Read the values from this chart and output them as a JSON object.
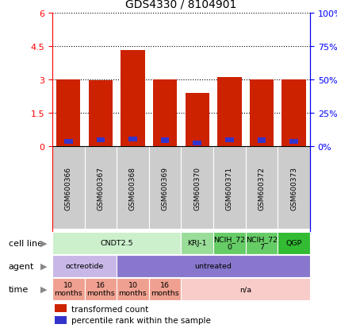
{
  "title": "GDS4330 / 8104901",
  "samples": [
    "GSM600366",
    "GSM600367",
    "GSM600368",
    "GSM600369",
    "GSM600370",
    "GSM600371",
    "GSM600372",
    "GSM600373"
  ],
  "bar_heights": [
    3.0,
    2.95,
    4.3,
    3.0,
    2.4,
    3.1,
    3.0,
    3.0
  ],
  "blue_positions": [
    0.12,
    0.18,
    0.2,
    0.16,
    0.05,
    0.18,
    0.16,
    0.12
  ],
  "blue_heights": [
    0.22,
    0.22,
    0.22,
    0.22,
    0.22,
    0.22,
    0.22,
    0.22
  ],
  "ylim_main": [
    0,
    6
  ],
  "yticks": [
    0,
    1.5,
    3.0,
    4.5,
    6.0
  ],
  "ytick_labels": [
    "0",
    "1.5",
    "3",
    "4.5",
    "6"
  ],
  "right_ytick_labels": [
    "0%",
    "25%",
    "50%",
    "75%",
    "100%"
  ],
  "bar_color": "#cc2200",
  "blue_color": "#3333cc",
  "sample_box_color": "#cccccc",
  "cell_line_row": {
    "groups": [
      {
        "label": "CNDT2.5",
        "start": 0,
        "end": 4,
        "color": "#ccf0cc"
      },
      {
        "label": "KRJ-1",
        "start": 4,
        "end": 5,
        "color": "#99dd99"
      },
      {
        "label": "NCIH_72\n0",
        "start": 5,
        "end": 6,
        "color": "#66cc66"
      },
      {
        "label": "NCIH_72\n7",
        "start": 6,
        "end": 7,
        "color": "#66cc66"
      },
      {
        "label": "QGP",
        "start": 7,
        "end": 8,
        "color": "#33bb33"
      }
    ]
  },
  "agent_row": {
    "groups": [
      {
        "label": "octreotide",
        "start": 0,
        "end": 2,
        "color": "#c8b8e8"
      },
      {
        "label": "untreated",
        "start": 2,
        "end": 8,
        "color": "#8877cc"
      }
    ]
  },
  "time_row": {
    "groups": [
      {
        "label": "10\nmonths",
        "start": 0,
        "end": 1,
        "color": "#f0a090"
      },
      {
        "label": "16\nmonths",
        "start": 1,
        "end": 2,
        "color": "#f0a090"
      },
      {
        "label": "10\nmonths",
        "start": 2,
        "end": 3,
        "color": "#f0a090"
      },
      {
        "label": "16\nmonths",
        "start": 3,
        "end": 4,
        "color": "#f0a090"
      },
      {
        "label": "n/a",
        "start": 4,
        "end": 8,
        "color": "#f8ccc8"
      }
    ]
  },
  "row_labels": [
    "cell line",
    "agent",
    "time"
  ],
  "legend_items": [
    {
      "color": "#cc2200",
      "label": "transformed count"
    },
    {
      "color": "#3333cc",
      "label": "percentile rank within the sample"
    }
  ]
}
